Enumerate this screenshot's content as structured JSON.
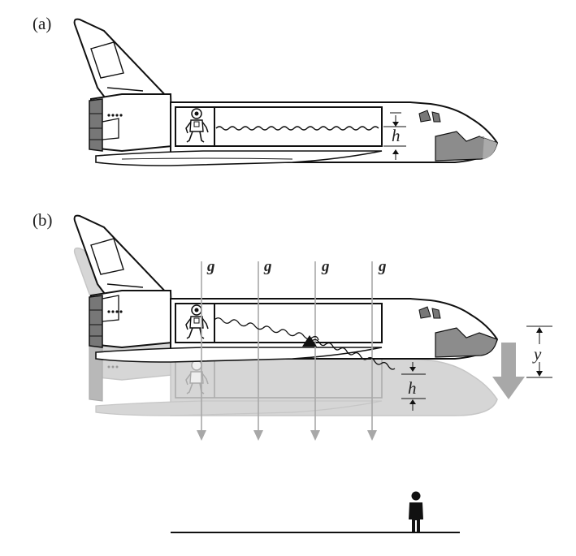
{
  "panels": {
    "a": {
      "label": "(a)",
      "height_label": "h"
    },
    "b": {
      "label": "(b)",
      "height_label": "h",
      "displacement_label": "y"
    }
  },
  "gravity": {
    "symbol": "g",
    "arrow_count": 4
  },
  "colors": {
    "outline": "#111111",
    "nose_fill": "#8c8c8c",
    "ghost_fill": "#d6d6d6",
    "ghost_line": "#b4b4b4",
    "arrow_gray": "#a8a8a8",
    "ground": "#111111"
  },
  "icons": {
    "astronaut": "astronaut-icon",
    "observer": "standing-person-icon",
    "mass": "triangle-mass-icon"
  }
}
